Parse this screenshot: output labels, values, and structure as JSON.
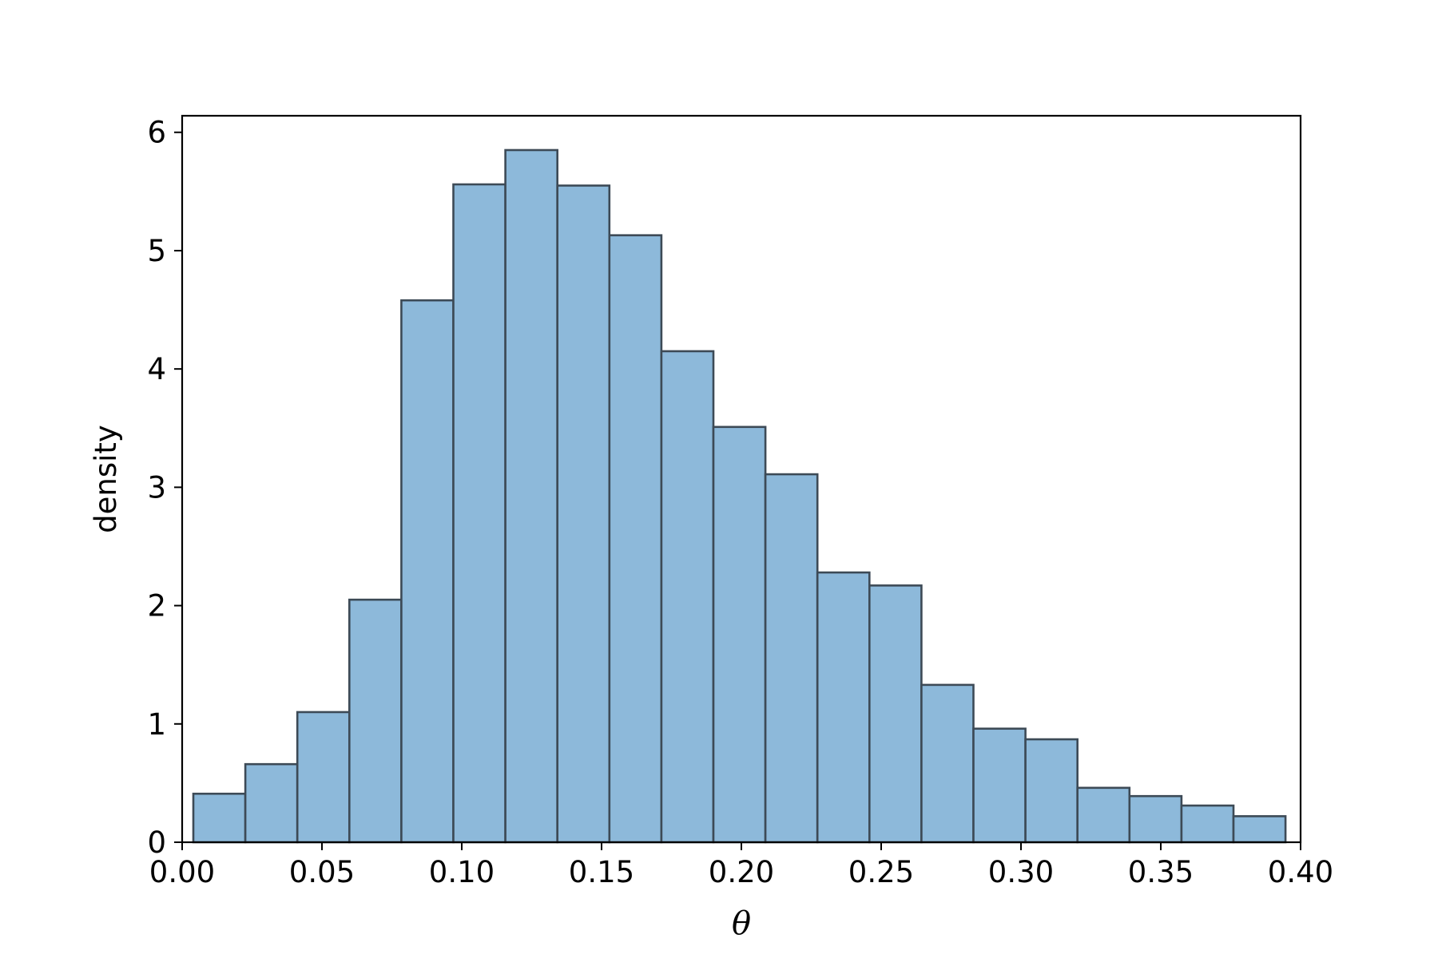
{
  "chart_data": {
    "type": "bar",
    "histogram": true,
    "bin_edges": [
      0.004,
      0.0226,
      0.0412,
      0.0598,
      0.0784,
      0.097,
      0.1156,
      0.1342,
      0.1528,
      0.1714,
      0.19,
      0.2086,
      0.2272,
      0.2458,
      0.2644,
      0.283,
      0.3016,
      0.3202,
      0.3388,
      0.3574,
      0.376,
      0.3946
    ],
    "values": [
      0.41,
      0.66,
      1.1,
      2.05,
      4.58,
      5.56,
      5.85,
      5.55,
      5.13,
      4.15,
      3.51,
      3.11,
      2.28,
      2.17,
      1.33,
      0.96,
      0.87,
      0.46,
      0.39,
      0.31,
      0.22
    ],
    "xlabel": "θ",
    "ylabel": "density",
    "xlim": [
      0.0,
      0.4
    ],
    "ylim": [
      0,
      6.14
    ],
    "xticks": [
      0.0,
      0.05,
      0.1,
      0.15,
      0.2,
      0.25,
      0.3,
      0.35,
      0.4
    ],
    "xtick_labels": [
      "0.00",
      "0.05",
      "0.10",
      "0.15",
      "0.20",
      "0.25",
      "0.30",
      "0.35",
      "0.40"
    ],
    "yticks": [
      0,
      1,
      2,
      3,
      4,
      5,
      6
    ],
    "ytick_labels": [
      "0",
      "1",
      "2",
      "3",
      "4",
      "5",
      "6"
    ],
    "bar_color": "#8db9da",
    "bar_edge_color": "#3d4a56",
    "grid": false,
    "legend": "none"
  }
}
